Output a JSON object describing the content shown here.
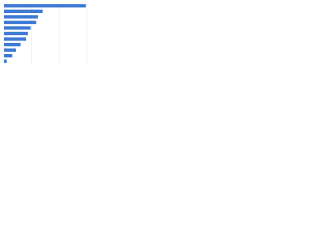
{
  "chart_data": {
    "type": "bar",
    "orientation": "horizontal",
    "categories": [
      null,
      null,
      null,
      null,
      null,
      null,
      null,
      null,
      null,
      null,
      null
    ],
    "values": [
      89,
      42,
      37,
      35,
      29,
      26,
      24,
      18,
      13,
      9,
      3
    ],
    "color": "#3a78d4",
    "xlim": [
      0,
      100
    ],
    "xticks": [
      0,
      30,
      60,
      90
    ],
    "grid": true
  }
}
